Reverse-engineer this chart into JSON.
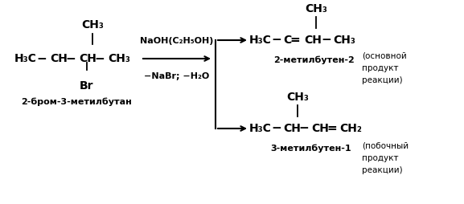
{
  "bg_color": "#ffffff",
  "reactant_ch3_top": "CH₃",
  "reactant_br": "Br",
  "reactant_label": "2-бром-3-метилбутан",
  "reagent_line1": "NaOH(C₂H₅OH)",
  "reagent_line2": "−NaBr; −H₂O",
  "product1_top": "CH₃",
  "product1_label": "2-метилбутен-2",
  "product1_sub1": "(основной",
  "product1_sub2": "продукт",
  "product1_sub3": "реакции)",
  "product2_top": "CH₃",
  "product2_label": "3-метилбутен-1",
  "product2_sub1": "(побочный",
  "product2_sub2": "продукт",
  "product2_sub3": "реакции)"
}
